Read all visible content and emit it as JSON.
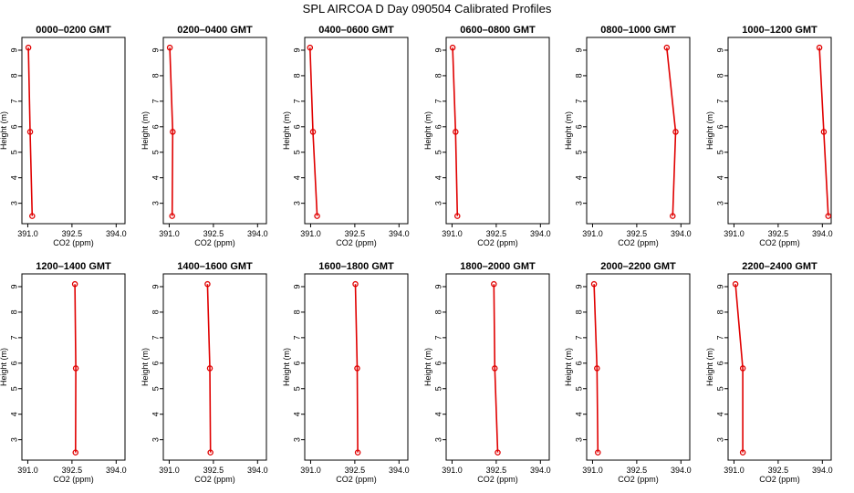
{
  "title": "SPL AIRCOA D  Day 090504  Calibrated Profiles",
  "colors": {
    "series": "#e00000",
    "axis": "#000000"
  },
  "chart_data": [
    {
      "type": "line",
      "title": "0000–0200 GMT",
      "xlabel": "CO2 (ppm)",
      "ylabel": "Height (m)",
      "xlim": [
        390.8,
        394.3
      ],
      "ylim": [
        2.2,
        9.5
      ],
      "xticks": [
        "391.0",
        "392.5",
        "394.0"
      ],
      "yticks": [
        "3",
        "4",
        "5",
        "6",
        "7",
        "8",
        "9"
      ],
      "x": [
        391.15,
        391.08,
        391.02
      ],
      "y": [
        2.5,
        5.8,
        9.1
      ]
    },
    {
      "type": "line",
      "title": "0200–0400 GMT",
      "xlabel": "CO2 (ppm)",
      "ylabel": "Height (m)",
      "xlim": [
        390.8,
        394.3
      ],
      "ylim": [
        2.2,
        9.5
      ],
      "xticks": [
        "391.0",
        "392.5",
        "394.0"
      ],
      "yticks": [
        "3",
        "4",
        "5",
        "6",
        "7",
        "8",
        "9"
      ],
      "x": [
        391.1,
        391.12,
        391.02
      ],
      "y": [
        2.5,
        5.8,
        9.1
      ]
    },
    {
      "type": "line",
      "title": "0400–0600 GMT",
      "xlabel": "CO2 (ppm)",
      "ylabel": "Height (m)",
      "xlim": [
        390.8,
        394.3
      ],
      "ylim": [
        2.2,
        9.5
      ],
      "xticks": [
        "391.0",
        "392.5",
        "394.0"
      ],
      "yticks": [
        "3",
        "4",
        "5",
        "6",
        "7",
        "8",
        "9"
      ],
      "x": [
        391.22,
        391.08,
        390.98
      ],
      "y": [
        2.5,
        5.8,
        9.1
      ]
    },
    {
      "type": "line",
      "title": "0600–0800 GMT",
      "xlabel": "CO2 (ppm)",
      "ylabel": "Height (m)",
      "xlim": [
        390.8,
        394.3
      ],
      "ylim": [
        2.2,
        9.5
      ],
      "xticks": [
        "391.0",
        "392.5",
        "394.0"
      ],
      "yticks": [
        "3",
        "4",
        "5",
        "6",
        "7",
        "8",
        "9"
      ],
      "x": [
        391.18,
        391.12,
        391.02
      ],
      "y": [
        2.5,
        5.8,
        9.1
      ]
    },
    {
      "type": "line",
      "title": "0800–1000 GMT",
      "xlabel": "CO2 (ppm)",
      "ylabel": "Height (m)",
      "xlim": [
        390.8,
        394.3
      ],
      "ylim": [
        2.2,
        9.5
      ],
      "xticks": [
        "391.0",
        "392.5",
        "394.0"
      ],
      "yticks": [
        "3",
        "4",
        "5",
        "6",
        "7",
        "8",
        "9"
      ],
      "x": [
        393.72,
        393.82,
        393.52
      ],
      "y": [
        2.5,
        5.8,
        9.1
      ]
    },
    {
      "type": "line",
      "title": "1000–1200 GMT",
      "xlabel": "CO2 (ppm)",
      "ylabel": "Height (m)",
      "xlim": [
        390.8,
        394.3
      ],
      "ylim": [
        2.2,
        9.5
      ],
      "xticks": [
        "391.0",
        "392.5",
        "394.0"
      ],
      "yticks": [
        "3",
        "4",
        "5",
        "6",
        "7",
        "8",
        "9"
      ],
      "x": [
        394.2,
        394.05,
        393.9
      ],
      "y": [
        2.5,
        5.8,
        9.1
      ]
    },
    {
      "type": "line",
      "title": "1200–1400 GMT",
      "xlabel": "CO2 (ppm)",
      "ylabel": "Height (m)",
      "xlim": [
        390.8,
        394.3
      ],
      "ylim": [
        2.2,
        9.5
      ],
      "xticks": [
        "391.0",
        "392.5",
        "394.0"
      ],
      "yticks": [
        "3",
        "4",
        "5",
        "6",
        "7",
        "8",
        "9"
      ],
      "x": [
        392.62,
        392.63,
        392.6
      ],
      "y": [
        2.5,
        5.8,
        9.1
      ]
    },
    {
      "type": "line",
      "title": "1400–1600 GMT",
      "xlabel": "CO2 (ppm)",
      "ylabel": "Height (m)",
      "xlim": [
        390.8,
        394.3
      ],
      "ylim": [
        2.2,
        9.5
      ],
      "xticks": [
        "391.0",
        "392.5",
        "394.0"
      ],
      "yticks": [
        "3",
        "4",
        "5",
        "6",
        "7",
        "8",
        "9"
      ],
      "x": [
        392.4,
        392.38,
        392.3
      ],
      "y": [
        2.5,
        5.8,
        9.1
      ]
    },
    {
      "type": "line",
      "title": "1600–1800 GMT",
      "xlabel": "CO2 (ppm)",
      "ylabel": "Height (m)",
      "xlim": [
        390.8,
        394.3
      ],
      "ylim": [
        2.2,
        9.5
      ],
      "xticks": [
        "391.0",
        "392.5",
        "394.0"
      ],
      "yticks": [
        "3",
        "4",
        "5",
        "6",
        "7",
        "8",
        "9"
      ],
      "x": [
        392.6,
        392.58,
        392.52
      ],
      "y": [
        2.5,
        5.8,
        9.1
      ]
    },
    {
      "type": "line",
      "title": "1800–2000 GMT",
      "xlabel": "CO2 (ppm)",
      "ylabel": "Height (m)",
      "xlim": [
        390.8,
        394.3
      ],
      "ylim": [
        2.2,
        9.5
      ],
      "xticks": [
        "391.0",
        "392.5",
        "394.0"
      ],
      "yticks": [
        "3",
        "4",
        "5",
        "6",
        "7",
        "8",
        "9"
      ],
      "x": [
        392.55,
        392.45,
        392.42
      ],
      "y": [
        2.5,
        5.8,
        9.1
      ]
    },
    {
      "type": "line",
      "title": "2000–2200 GMT",
      "xlabel": "CO2 (ppm)",
      "ylabel": "Height (m)",
      "xlim": [
        390.8,
        394.3
      ],
      "ylim": [
        2.2,
        9.5
      ],
      "xticks": [
        "391.0",
        "392.5",
        "394.0"
      ],
      "yticks": [
        "3",
        "4",
        "5",
        "6",
        "7",
        "8",
        "9"
      ],
      "x": [
        391.18,
        391.15,
        391.05
      ],
      "y": [
        2.5,
        5.8,
        9.1
      ]
    },
    {
      "type": "line",
      "title": "2200–2400 GMT",
      "xlabel": "CO2 (ppm)",
      "ylabel": "Height (m)",
      "xlim": [
        390.8,
        394.3
      ],
      "ylim": [
        2.2,
        9.5
      ],
      "xticks": [
        "391.0",
        "392.5",
        "394.0"
      ],
      "yticks": [
        "3",
        "4",
        "5",
        "6",
        "7",
        "8",
        "9"
      ],
      "x": [
        391.3,
        391.3,
        391.05
      ],
      "y": [
        2.5,
        5.8,
        9.1
      ]
    }
  ]
}
